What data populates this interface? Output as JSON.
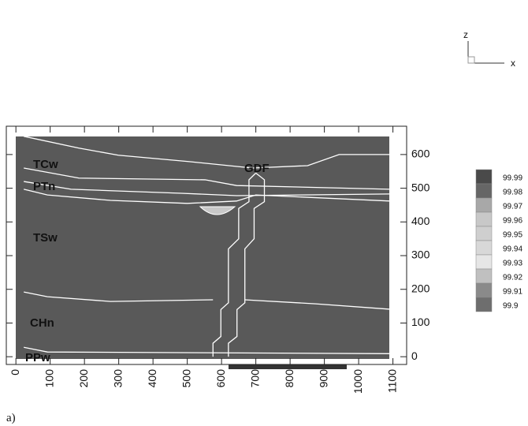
{
  "chart_data": {
    "type": "contour",
    "xlim": [
      -28,
      1140
    ],
    "ylim": [
      -23,
      684
    ],
    "xticks": [
      0,
      100,
      200,
      300,
      400,
      500,
      600,
      700,
      800,
      900,
      1000,
      1100
    ],
    "yticks": [
      0,
      100,
      200,
      300,
      400,
      500,
      600
    ],
    "series": [
      {
        "color": "#ffffff",
        "x": [
          23,
          184,
          299,
          506,
          690,
          851,
          943,
          1090
        ],
        "y": [
          654,
          619,
          598,
          579,
          560,
          567,
          600,
          600
        ]
      },
      {
        "color": "#ffffff",
        "x": [
          23,
          184,
          552,
          644,
          1090
        ],
        "y": [
          560,
          530,
          525,
          508,
          497
        ]
      },
      {
        "color": "#ffffff",
        "x": [
          23,
          161,
          483,
          644,
          1090
        ],
        "y": [
          520,
          497,
          485,
          478,
          483
        ]
      },
      {
        "color": "#ffffff",
        "x": [
          23,
          92,
          276,
          500,
          644,
          700,
          1090
        ],
        "y": [
          497,
          480,
          464,
          455,
          462,
          480,
          462
        ]
      },
      {
        "color": "#ffffff",
        "x": [
          23,
          92,
          276,
          575
        ],
        "y": [
          192,
          178,
          164,
          169
        ]
      },
      {
        "color": "#ffffff",
        "x": [
          667,
          874,
          1090
        ],
        "y": [
          169,
          157,
          141
        ]
      },
      {
        "color": "#ffffff",
        "x": [
          23,
          92,
          1090
        ],
        "y": [
          28,
          14,
          9
        ]
      },
      {
        "color": "#ffffff",
        "x": [
          575,
          575,
          598,
          598,
          620,
          620,
          650,
          650,
          680,
          680,
          700
        ],
        "y": [
          0,
          40,
          60,
          140,
          160,
          320,
          350,
          440,
          460,
          525,
          545
        ]
      },
      {
        "color": "#ffffff",
        "x": [
          620,
          620,
          645,
          645,
          668,
          668,
          695,
          695,
          725,
          725,
          700
        ],
        "y": [
          0,
          40,
          60,
          140,
          160,
          320,
          350,
          440,
          460,
          525,
          545
        ]
      }
    ],
    "annotations": [
      "TCw",
      "PTn",
      "TSw",
      "CHn",
      "PPw",
      "GDF"
    ],
    "colorbar": {
      "levels": [
        99.99,
        99.98,
        99.97,
        99.96,
        99.95,
        99.94,
        99.93,
        99.92,
        99.91,
        99.9
      ],
      "colors": [
        "#4a4a4a",
        "#666666",
        "#a8a8a8",
        "#c8c8c8",
        "#cfcfcf",
        "#d8d8d8",
        "#e6e6e6",
        "#c0c0c0",
        "#8a8a8a",
        "#6e6e6e"
      ]
    },
    "triad": {
      "z": "z",
      "x": "x"
    },
    "caption": "a)"
  }
}
